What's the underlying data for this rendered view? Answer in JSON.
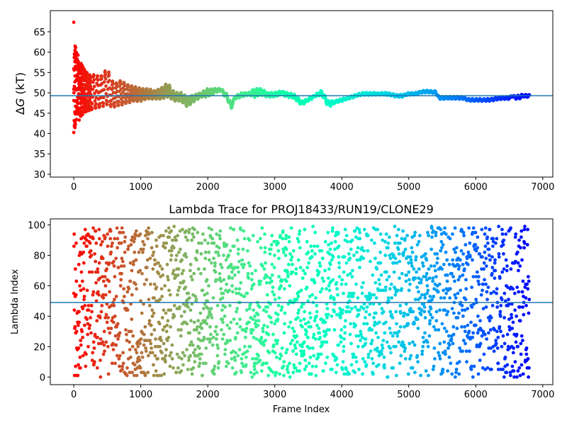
{
  "chart_data": [
    {
      "type": "scatter",
      "title": "",
      "xlabel": "",
      "ylabel": "ΔG (kT)",
      "ylabel_parts": {
        "delta": "Δ",
        "var": "G",
        "unit": " (kT)"
      },
      "xlim": [
        -350,
        7150
      ],
      "ylim": [
        29.3,
        70.2
      ],
      "xticks": [
        0,
        1000,
        2000,
        3000,
        4000,
        5000,
        6000,
        7000
      ],
      "xtick_labels": [
        "0",
        "1000",
        "2000",
        "3000",
        "4000",
        "5000",
        "6000",
        "7000"
      ],
      "yticks": [
        30,
        35,
        40,
        45,
        50,
        55,
        60,
        65
      ],
      "ytick_labels": [
        "30",
        "35",
        "40",
        "45",
        "50",
        "55",
        "60",
        "65"
      ],
      "hline": 49.3,
      "colormap": "rainbow",
      "x_range": [
        0,
        6800
      ],
      "trace_anchors": [
        [
          0,
          36,
          68
        ],
        [
          20,
          40,
          62
        ],
        [
          50,
          42,
          60
        ],
        [
          100,
          44,
          58
        ],
        [
          150,
          45,
          56
        ],
        [
          200,
          45.5,
          55
        ],
        [
          300,
          46,
          54.5
        ],
        [
          400,
          46.5,
          54
        ],
        [
          500,
          47,
          56
        ],
        [
          600,
          46.5,
          52
        ],
        [
          700,
          47,
          53
        ],
        [
          800,
          47.5,
          52
        ],
        [
          900,
          48,
          51.5
        ],
        [
          1000,
          48,
          51
        ],
        [
          1100,
          48.5,
          51
        ],
        [
          1200,
          48.5,
          50.5
        ],
        [
          1300,
          48.5,
          51
        ],
        [
          1400,
          49,
          52.5
        ],
        [
          1500,
          48,
          50
        ],
        [
          1600,
          48,
          50
        ],
        [
          1700,
          46.5,
          49
        ],
        [
          1800,
          48,
          49.5
        ],
        [
          1900,
          49,
          50
        ],
        [
          2000,
          49,
          51
        ],
        [
          2100,
          50,
          51
        ],
        [
          2200,
          50.5,
          51
        ],
        [
          2300,
          48,
          49.5
        ],
        [
          2350,
          46,
          47
        ],
        [
          2400,
          48.5,
          49
        ],
        [
          2500,
          49,
          50
        ],
        [
          2600,
          49.5,
          50
        ],
        [
          2700,
          49,
          51
        ],
        [
          2800,
          49.5,
          51
        ],
        [
          2900,
          49,
          50
        ],
        [
          3000,
          49,
          50
        ],
        [
          3100,
          49.5,
          50.5
        ],
        [
          3200,
          49,
          50
        ],
        [
          3300,
          48.5,
          49.5
        ],
        [
          3400,
          47,
          48
        ],
        [
          3500,
          48,
          48.5
        ],
        [
          3600,
          49,
          49.5
        ],
        [
          3700,
          49.5,
          50.5
        ],
        [
          3800,
          46.5,
          48
        ],
        [
          3900,
          47.5,
          48
        ],
        [
          4000,
          48,
          48.5
        ],
        [
          4100,
          48.5,
          49
        ],
        [
          4200,
          49,
          49.5
        ],
        [
          4300,
          49.5,
          50
        ],
        [
          4400,
          49.5,
          50
        ],
        [
          4500,
          49.5,
          50
        ],
        [
          4600,
          49.5,
          50
        ],
        [
          4700,
          49.5,
          50
        ],
        [
          4800,
          49,
          49.5
        ],
        [
          4900,
          49,
          49.5
        ],
        [
          5000,
          49.5,
          50
        ],
        [
          5100,
          49.5,
          50
        ],
        [
          5200,
          50,
          50.5
        ],
        [
          5300,
          50,
          50.5
        ],
        [
          5400,
          50,
          50.5
        ],
        [
          5450,
          48.5,
          49
        ],
        [
          5600,
          48.5,
          49
        ],
        [
          5800,
          48.5,
          49
        ],
        [
          5900,
          48,
          48.5
        ],
        [
          6000,
          48,
          48.5
        ],
        [
          6100,
          48,
          48.5
        ],
        [
          6200,
          48,
          48.5
        ],
        [
          6300,
          48.3,
          48.8
        ],
        [
          6400,
          48.5,
          49
        ],
        [
          6500,
          48.5,
          49
        ],
        [
          6550,
          49,
          49.5
        ],
        [
          6600,
          48.5,
          49
        ],
        [
          6650,
          48.5,
          49.5
        ],
        [
          6700,
          49,
          49.5
        ],
        [
          6800,
          49,
          49.5
        ]
      ]
    },
    {
      "type": "scatter",
      "title": "Lambda Trace for PROJ18433/RUN19/CLONE29",
      "xlabel": "Frame Index",
      "ylabel": "Lambda Index",
      "xlim": [
        -350,
        7150
      ],
      "ylim": [
        -5,
        104
      ],
      "xticks": [
        0,
        1000,
        2000,
        3000,
        4000,
        5000,
        6000,
        7000
      ],
      "xtick_labels": [
        "0",
        "1000",
        "2000",
        "3000",
        "4000",
        "5000",
        "6000",
        "7000"
      ],
      "yticks": [
        0,
        20,
        40,
        60,
        80,
        100
      ],
      "ytick_labels": [
        "0",
        "20",
        "40",
        "60",
        "80",
        "100"
      ],
      "hline": 49,
      "colormap": "rainbow",
      "x_range": [
        0,
        6800
      ],
      "value_range": [
        0,
        99
      ]
    }
  ],
  "colors": {
    "hline": "#1f77b4",
    "axes": "#000000",
    "background": "#ffffff"
  }
}
